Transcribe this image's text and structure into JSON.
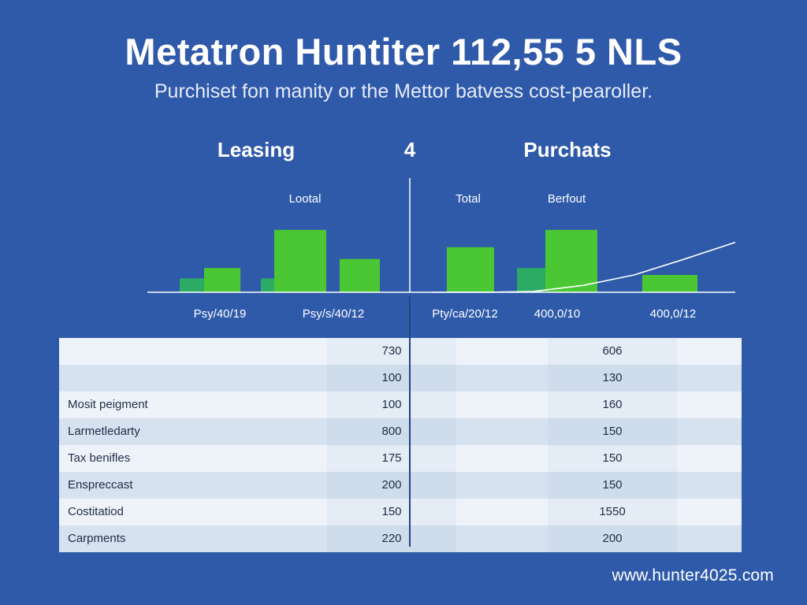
{
  "header": {
    "title": "Metatron Huntiter 112,55 5 NLS",
    "subtitle": "Purchiset fon manity or the Mettor batvess cost-pearoller."
  },
  "chart_data": {
    "type": "bar",
    "panels": [
      {
        "heading": "Leasing",
        "label": "Lootal",
        "bars": [
          {
            "value": 20,
            "color": "#2bab63"
          },
          {
            "value": 35,
            "color": "#4bc733"
          },
          {
            "value": 20,
            "color": "#2bab63"
          },
          {
            "value": 90,
            "color": "#4bc733"
          },
          {
            "value": 48,
            "color": "#4bc733"
          }
        ]
      },
      {
        "heading": "Purchats",
        "labels": [
          "Total",
          "Berfout"
        ],
        "bars": [
          {
            "value": 65,
            "color": "#4bc733"
          },
          {
            "value": 35,
            "color": "#2bab63"
          },
          {
            "value": 90,
            "color": "#4bc733"
          },
          {
            "value": 25,
            "color": "#4bc733"
          }
        ],
        "trend_line": [
          0,
          0,
          1,
          10,
          25,
          48,
          72
        ]
      }
    ],
    "center_label": "4",
    "x_tick_labels": [
      "Psy/40/19",
      "Psy/s/40/12",
      "Pty/ca/20/12",
      "400,0/10",
      "400,0/12"
    ]
  },
  "table": {
    "rows": [
      {
        "label": "",
        "leasing": "730",
        "purchase": "606"
      },
      {
        "label": "",
        "leasing": "100",
        "purchase": "130"
      },
      {
        "label": "Mosit peigment",
        "leasing": "100",
        "purchase": "160"
      },
      {
        "label": "Larmetledarty",
        "leasing": "800",
        "purchase": "150"
      },
      {
        "label": "Tax benifles",
        "leasing": "175",
        "purchase": "150"
      },
      {
        "label": "Enspreccast",
        "leasing": "200",
        "purchase": "150"
      },
      {
        "label": "Costitatiod",
        "leasing": "150",
        "purchase": "1550"
      },
      {
        "label": "Carpments",
        "leasing": "220",
        "purchase": "200"
      }
    ]
  },
  "footer": {
    "url": "www.hunter4025.com"
  }
}
